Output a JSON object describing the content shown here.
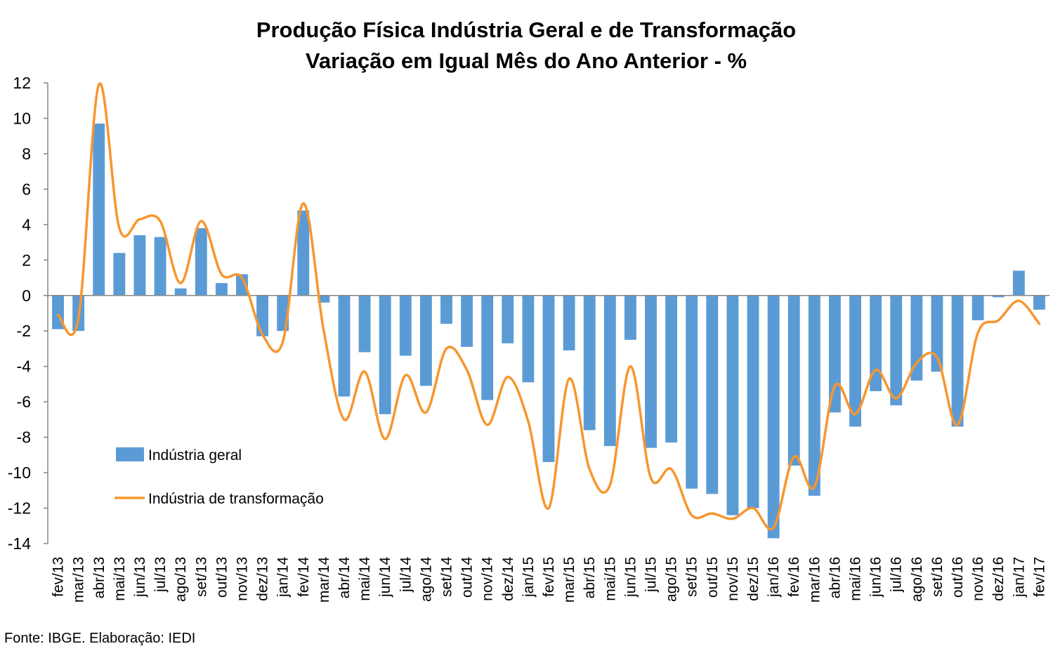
{
  "chart_data": {
    "type": "bar",
    "title": "Produção Física Indústria Geral e de Transformação",
    "subtitle": "Variação em Igual Mês do Ano Anterior - %",
    "xlabel": "",
    "ylabel": "",
    "ylim": [
      -14,
      12
    ],
    "yticks": [
      "12",
      "10",
      "8",
      "6",
      "4",
      "2",
      "0",
      "-2",
      "-4",
      "-6",
      "-8",
      "-10",
      "-12",
      "-14"
    ],
    "grid": false,
    "legend_position": "left, lower-middle",
    "categories": [
      "fev/13",
      "mar/13",
      "abr/13",
      "mai/13",
      "jun/13",
      "jul/13",
      "ago/13",
      "set/13",
      "out/13",
      "nov/13",
      "dez/13",
      "jan/14",
      "fev/14",
      "mar/14",
      "abr/14",
      "mai/14",
      "jun/14",
      "jul/14",
      "ago/14",
      "set/14",
      "out/14",
      "nov/14",
      "dez/14",
      "jan/15",
      "fev/15",
      "mar/15",
      "abr/15",
      "mai/15",
      "jun/15",
      "jul/15",
      "ago/15",
      "set/15",
      "out/15",
      "nov/15",
      "dez/15",
      "jan/16",
      "fev/16",
      "mar/16",
      "abr/16",
      "mai/16",
      "jun/16",
      "jul/16",
      "ago/16",
      "set/16",
      "out/16",
      "nov/16",
      "dez/16",
      "jan/17",
      "fev/17"
    ],
    "series": [
      {
        "name": "Indústria geral",
        "type": "bar",
        "color": "#5B9BD5",
        "values": [
          -1.9,
          -2.0,
          9.7,
          2.4,
          3.4,
          3.3,
          0.4,
          3.8,
          0.7,
          1.2,
          -2.3,
          -2.0,
          4.8,
          -0.4,
          -5.7,
          -3.2,
          -6.7,
          -3.4,
          -5.1,
          -1.6,
          -2.9,
          -5.9,
          -2.7,
          -4.9,
          -9.4,
          -3.1,
          -7.6,
          -8.5,
          -2.5,
          -8.6,
          -8.3,
          -10.9,
          -11.2,
          -12.4,
          -12.0,
          -13.7,
          -9.6,
          -11.3,
          -6.6,
          -7.4,
          -5.4,
          -6.2,
          -4.8,
          -4.3,
          -7.4,
          -1.4,
          -0.1,
          1.4,
          -0.8
        ]
      },
      {
        "name": "Indústria de transformação",
        "type": "line",
        "color": "#F7962F",
        "values": [
          -1.1,
          -1.3,
          11.9,
          3.8,
          4.3,
          4.2,
          0.7,
          4.2,
          1.2,
          1.0,
          -2.2,
          -2.6,
          5.2,
          -2.0,
          -7.0,
          -4.3,
          -8.1,
          -4.5,
          -6.6,
          -3.0,
          -4.2,
          -7.3,
          -4.6,
          -7.1,
          -12.0,
          -4.7,
          -9.8,
          -10.7,
          -4.0,
          -10.3,
          -9.8,
          -12.4,
          -12.3,
          -12.6,
          -12.0,
          -13.1,
          -9.1,
          -10.8,
          -5.1,
          -6.7,
          -4.2,
          -5.8,
          -3.8,
          -3.5,
          -7.3,
          -2.1,
          -1.4,
          -0.3,
          -1.6
        ]
      }
    ]
  },
  "source": "Fonte: IBGE. Elaboração: IEDI"
}
